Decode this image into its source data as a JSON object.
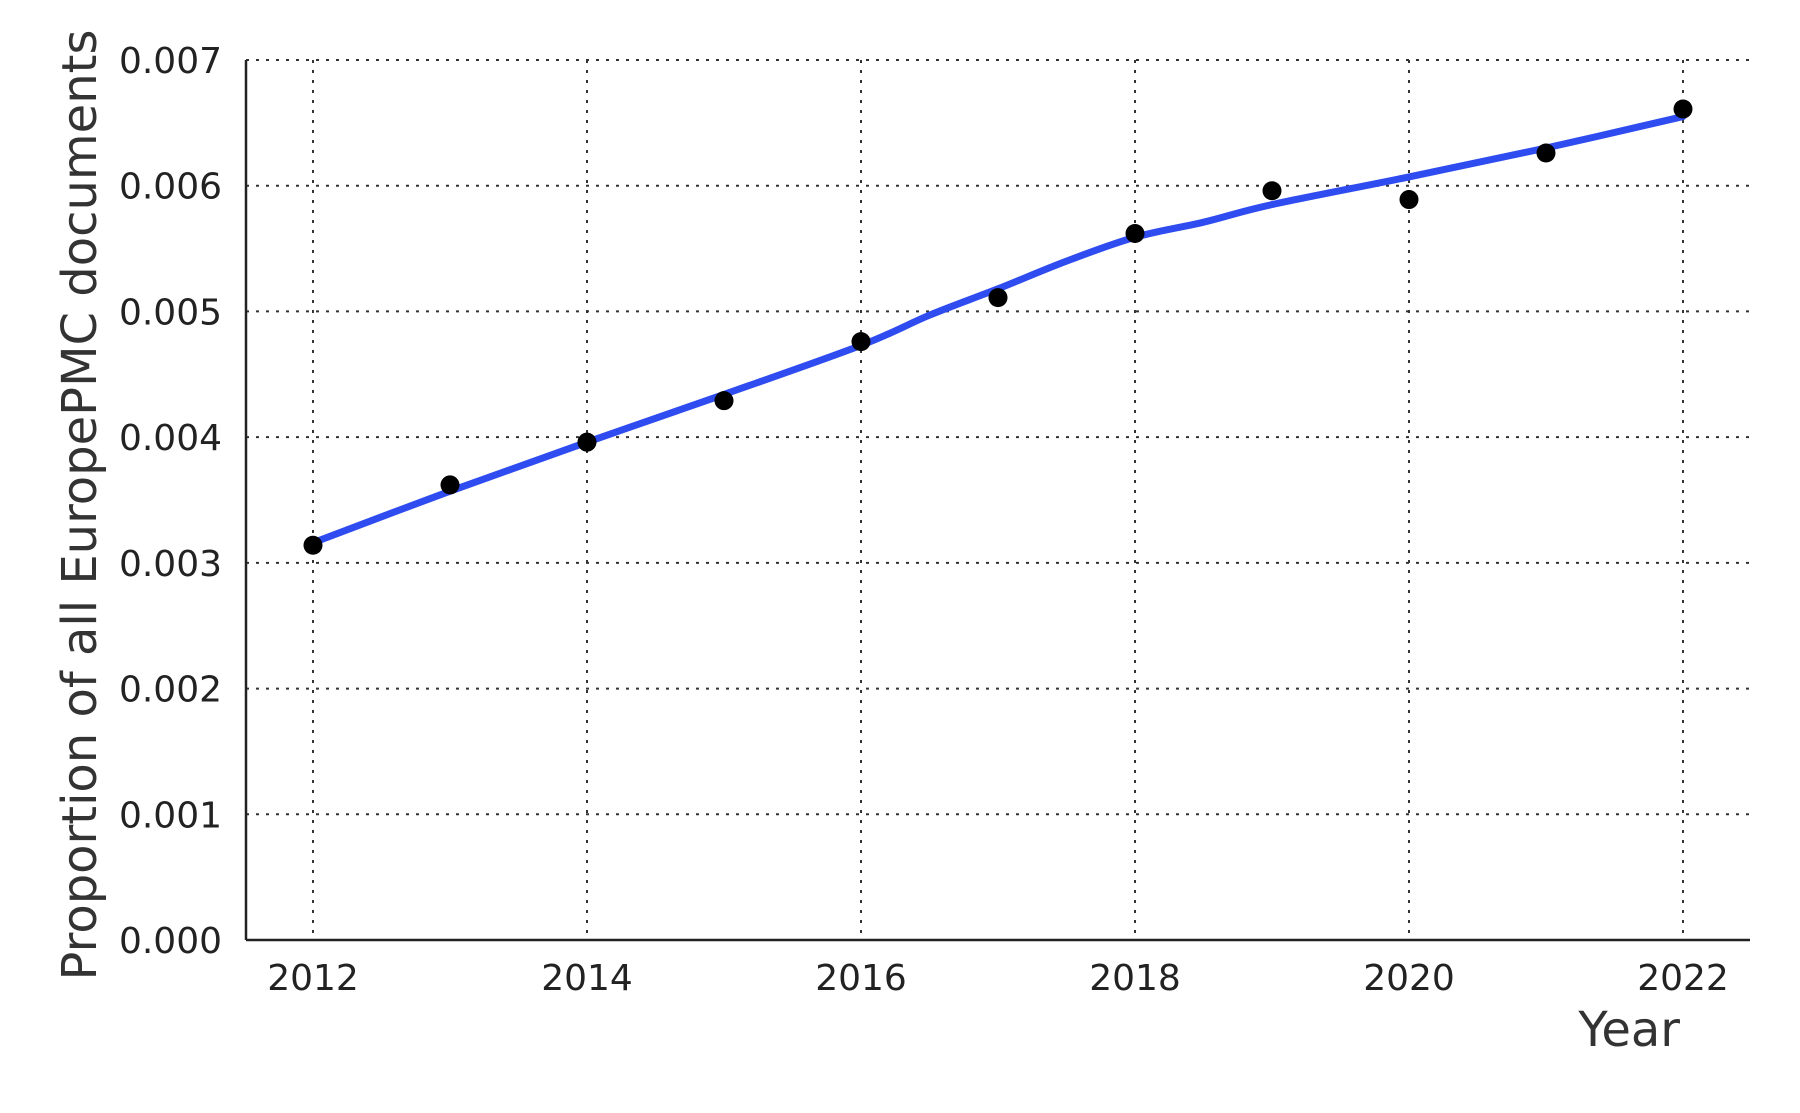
{
  "chart_data": {
    "type": "scatter",
    "xlabel": "Year",
    "ylabel": "Proportion of all EuropePMC documents",
    "xlim": [
      2011.5,
      2022.5
    ],
    "ylim": [
      0,
      0.007
    ],
    "x_ticks": [
      2012,
      2014,
      2016,
      2018,
      2020,
      2022
    ],
    "x_tick_labels": [
      "2012",
      "2014",
      "2016",
      "2018",
      "2020",
      "2022"
    ],
    "y_ticks": [
      0,
      0.001,
      0.002,
      0.003,
      0.004,
      0.005,
      0.006,
      0.007
    ],
    "y_tick_labels": [
      "0.000",
      "0.001",
      "0.002",
      "0.003",
      "0.004",
      "0.005",
      "0.006",
      "0.007"
    ],
    "grid": true,
    "series": [
      {
        "kind": "points",
        "color": "#000000",
        "x": [
          2012,
          2013,
          2014,
          2015,
          2016,
          2017,
          2018,
          2019,
          2020,
          2021,
          2022
        ],
        "y": [
          0.00314,
          0.00362,
          0.00396,
          0.00429,
          0.00476,
          0.00511,
          0.00562,
          0.00596,
          0.00589,
          0.00626,
          0.00661
        ]
      },
      {
        "kind": "smooth-fit",
        "color": "#2f4cf0",
        "x": [
          2012,
          2013,
          2014,
          2015,
          2016,
          2016.5,
          2017,
          2017.5,
          2018,
          2018.5,
          2019,
          2020,
          2021,
          2022
        ],
        "y": [
          0.00316,
          0.00357,
          0.00396,
          0.00434,
          0.00473,
          0.00497,
          0.00518,
          0.0054,
          0.00559,
          0.00571,
          0.00585,
          0.00607,
          0.0063,
          0.00655
        ]
      }
    ]
  }
}
